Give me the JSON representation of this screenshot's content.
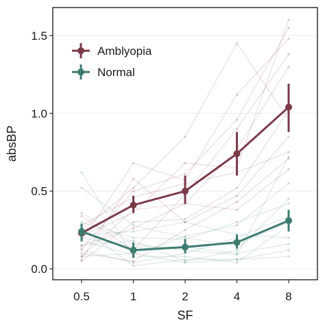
{
  "chart_data": {
    "type": "line",
    "xlabel": "SF",
    "ylabel": "absBP",
    "categories": [
      "0.5",
      "1",
      "2",
      "4",
      "8"
    ],
    "yticks": [
      "0.0",
      "0.5",
      "1.0",
      "1.5"
    ],
    "ylim": [
      -0.07,
      1.68
    ],
    "grid": "horizontal",
    "legend_position": "top-left",
    "series": [
      {
        "name": "Amblyopia",
        "color": "#7b3a4a",
        "values": [
          0.23,
          0.41,
          0.5,
          0.74,
          1.04
        ],
        "error_low": [
          0.18,
          0.36,
          0.42,
          0.6,
          0.88
        ],
        "error_high": [
          0.29,
          0.47,
          0.6,
          0.88,
          1.19
        ],
        "individuals": [
          [
            0.08,
            0.38,
            0.42,
            0.77,
            1.3
          ],
          [
            0.13,
            0.5,
            0.61,
            0.96,
            1.55
          ],
          [
            0.25,
            0.52,
            0.85,
            1.45,
            0.96
          ],
          [
            0.05,
            0.3,
            0.32,
            0.52,
            1.02
          ],
          [
            0.18,
            0.68,
            0.57,
            1.12,
            1.48
          ],
          [
            0.34,
            0.12,
            0.48,
            0.9,
            1.38
          ],
          [
            0.28,
            0.46,
            0.55,
            0.62,
            0.75
          ],
          [
            0.1,
            0.05,
            0.25,
            0.43,
            0.71
          ],
          [
            0.21,
            0.36,
            0.68,
            0.65,
            1.6
          ],
          [
            0.15,
            0.26,
            0.42,
            0.38,
            0.64
          ],
          [
            0.06,
            0.58,
            0.3,
            0.47,
            0.85
          ]
        ]
      },
      {
        "name": "Normal",
        "color": "#3d7c71",
        "values": [
          0.24,
          0.12,
          0.14,
          0.17,
          0.31
        ],
        "error_low": [
          0.18,
          0.07,
          0.1,
          0.13,
          0.24
        ],
        "error_high": [
          0.29,
          0.17,
          0.19,
          0.22,
          0.38
        ],
        "individuals": [
          [
            0.62,
            0.08,
            0.08,
            0.04,
            0.28
          ],
          [
            0.2,
            0.14,
            0.14,
            0.1,
            0.16
          ],
          [
            0.26,
            0.02,
            0.06,
            0.06,
            0.12
          ],
          [
            0.3,
            0.2,
            0.19,
            0.3,
            0.42
          ],
          [
            0.12,
            0.04,
            0.1,
            0.2,
            0.34
          ],
          [
            0.52,
            0.28,
            0.2,
            0.15,
            0.3
          ],
          [
            0.18,
            0.09,
            0.21,
            0.28,
            0.55
          ],
          [
            0.36,
            0.16,
            0.12,
            0.09,
            0.72
          ],
          [
            0.08,
            0.1,
            0.04,
            0.06,
            0.08
          ],
          [
            0.22,
            0.24,
            0.3,
            0.22,
            0.2
          ],
          [
            0.15,
            0.18,
            0.05,
            0.12,
            0.45
          ]
        ]
      }
    ]
  }
}
